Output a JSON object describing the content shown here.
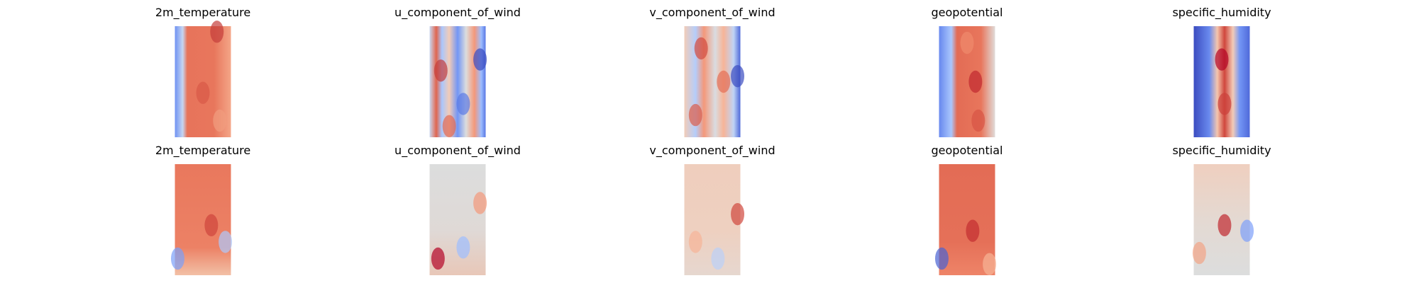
{
  "rows": [
    [
      "2m_temperature",
      "u_component_of_wind",
      "v_component_of_wind",
      "geopotential",
      "specific_humidity"
    ],
    [
      "2m_temperature",
      "u_component_of_wind",
      "v_component_of_wind",
      "geopotential",
      "specific_humidity"
    ]
  ]
}
